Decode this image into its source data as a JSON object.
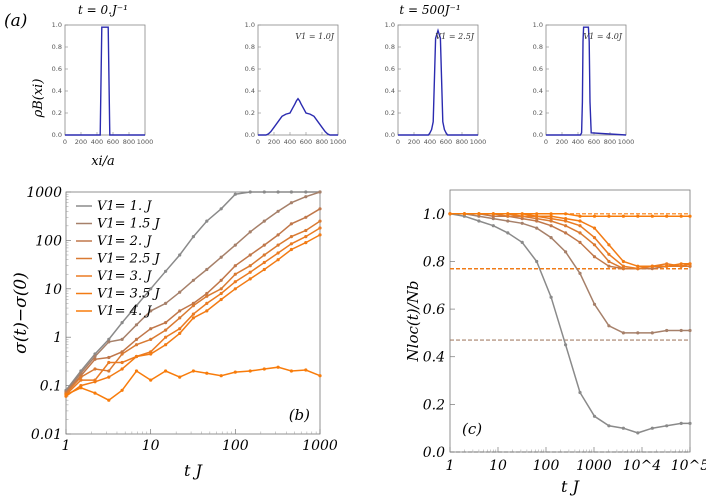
{
  "figure": {
    "label_a": "(a)",
    "time_left": "t = 0.J⁻¹",
    "time_right": "t = 500J⁻¹",
    "ylabel_a": "ρB(xi)",
    "xlabel_a": "xi/a"
  },
  "chart_data": [
    {
      "id": "a1",
      "type": "line",
      "annotation": "",
      "x": [
        0,
        440,
        460,
        540,
        560,
        1000
      ],
      "y": [
        0,
        0,
        0.98,
        0.98,
        0,
        0
      ],
      "xlim": [
        0,
        1000
      ],
      "ylim": [
        0,
        1.0
      ],
      "xticks": [
        "0",
        "200",
        "400",
        "600",
        "800",
        "1000"
      ],
      "yticks": [
        "0.0",
        "0.2",
        "0.4",
        "0.6",
        "0.8",
        "1.0"
      ]
    },
    {
      "id": "a2",
      "type": "line",
      "annotation": "V1 = 1.0J",
      "x": [
        0,
        100,
        130,
        160,
        200,
        250,
        300,
        350,
        400,
        430,
        460,
        480,
        500,
        520,
        540,
        570,
        600,
        650,
        700,
        750,
        800,
        840,
        870,
        900,
        1000
      ],
      "y": [
        0,
        0,
        0.01,
        0.03,
        0.07,
        0.12,
        0.17,
        0.19,
        0.2,
        0.24,
        0.28,
        0.31,
        0.33,
        0.31,
        0.28,
        0.24,
        0.2,
        0.19,
        0.17,
        0.12,
        0.07,
        0.03,
        0.01,
        0,
        0
      ],
      "xlim": [
        0,
        1000
      ],
      "ylim": [
        0,
        1.0
      ],
      "xticks": [
        "0",
        "200",
        "400",
        "600",
        "800",
        "1000"
      ],
      "yticks": [
        "0.0",
        "0.2",
        "0.4",
        "0.6",
        "0.8",
        "1.0"
      ]
    },
    {
      "id": "a3",
      "type": "line",
      "annotation": "V1 = 2.5J",
      "x": [
        0,
        380,
        400,
        420,
        440,
        455,
        470,
        500,
        530,
        545,
        560,
        580,
        600,
        620,
        1000
      ],
      "y": [
        0,
        0,
        0.02,
        0.05,
        0.12,
        0.5,
        0.88,
        0.95,
        0.88,
        0.5,
        0.12,
        0.05,
        0.02,
        0,
        0
      ],
      "xlim": [
        0,
        1000
      ],
      "ylim": [
        0,
        1.0
      ],
      "xticks": [
        "0",
        "200",
        "400",
        "600",
        "800",
        "1000"
      ],
      "yticks": [
        "0.0",
        "0.2",
        "0.4",
        "0.6",
        "0.8",
        "1.0"
      ]
    },
    {
      "id": "a4",
      "type": "line",
      "annotation": "V1 = 4.0J",
      "x": [
        0,
        430,
        445,
        455,
        462,
        470,
        530,
        540,
        550,
        565,
        1000
      ],
      "y": [
        0,
        0,
        0.02,
        0.3,
        0.85,
        0.98,
        0.98,
        0.85,
        0.3,
        0.02,
        0
      ],
      "xlim": [
        0,
        1000
      ],
      "ylim": [
        0,
        1.0
      ],
      "xticks": [
        "0",
        "200",
        "400",
        "600",
        "800",
        "1000"
      ],
      "yticks": [
        "0.0",
        "0.2",
        "0.4",
        "0.6",
        "0.8",
        "1.0"
      ]
    },
    {
      "id": "b",
      "type": "line",
      "label": "(b)",
      "xlabel": "t J",
      "ylabel": "σ(t)−σ(0)",
      "xscale": "log",
      "yscale": "log",
      "xlim": [
        1,
        1000
      ],
      "ylim": [
        0.01,
        1000
      ],
      "xticks": [
        "1",
        "10",
        "100",
        "1000"
      ],
      "yticks": [
        "0.01",
        "0.1",
        "1",
        "10",
        "100",
        "1000"
      ],
      "x": [
        1,
        1.5,
        2.2,
        3.2,
        4.6,
        6.8,
        10,
        15,
        22,
        32,
        46,
        68,
        100,
        150,
        220,
        320,
        460,
        680,
        1000
      ],
      "series": [
        {
          "name": "V1= 1.  J",
          "color": "#8a8a8a",
          "values": [
            0.08,
            0.2,
            0.45,
            0.9,
            2,
            4.5,
            10,
            23,
            50,
            120,
            250,
            450,
            900,
            1000,
            1000,
            1000,
            1000,
            1000,
            1000
          ]
        },
        {
          "name": "V1= 1.5 J",
          "color": "#a6806a",
          "values": [
            0.075,
            0.18,
            0.4,
            0.8,
            0.9,
            1.8,
            3.5,
            5,
            8.5,
            15,
            25,
            45,
            80,
            150,
            250,
            400,
            600,
            800,
            1000
          ]
        },
        {
          "name": "V1= 2.  J",
          "color": "#c0774a",
          "values": [
            0.07,
            0.16,
            0.35,
            0.38,
            0.5,
            0.9,
            1.5,
            2,
            3.5,
            5,
            8,
            15,
            30,
            50,
            80,
            130,
            220,
            300,
            450
          ]
        },
        {
          "name": "V1= 2.5 J",
          "color": "#d97a32",
          "values": [
            0.07,
            0.15,
            0.22,
            0.2,
            0.45,
            0.7,
            0.9,
            1.4,
            2.5,
            4.5,
            7,
            10,
            20,
            30,
            50,
            80,
            120,
            160,
            250
          ]
        },
        {
          "name": "V1= 3.  J",
          "color": "#ea7b22",
          "values": [
            0.065,
            0.13,
            0.13,
            0.3,
            0.3,
            0.4,
            0.5,
            1,
            1.5,
            3,
            5,
            8,
            14,
            22,
            35,
            55,
            85,
            120,
            180
          ]
        },
        {
          "name": "V1= 3.5 J",
          "color": "#f27b14",
          "values": [
            0.06,
            0.1,
            0.12,
            0.15,
            0.22,
            0.4,
            0.45,
            0.7,
            1.2,
            2.5,
            3.5,
            6,
            10,
            16,
            25,
            40,
            65,
            90,
            130
          ]
        },
        {
          "name": "V1= 4.  J",
          "color": "#f87c0b",
          "values": [
            0.065,
            0.09,
            0.07,
            0.05,
            0.08,
            0.2,
            0.13,
            0.2,
            0.15,
            0.2,
            0.18,
            0.16,
            0.19,
            0.2,
            0.22,
            0.24,
            0.2,
            0.21,
            0.16
          ]
        }
      ]
    },
    {
      "id": "c",
      "type": "line",
      "label": "(c)",
      "xlabel": "t J",
      "ylabel": "Nloc(t)/Nb",
      "xscale": "log",
      "xlim": [
        1,
        100000
      ],
      "ylim": [
        0,
        1.1
      ],
      "xticks": [
        "1",
        "10",
        "100",
        "1000",
        "10^4",
        "10^5"
      ],
      "yticks": [
        "0.0",
        "0.2",
        "0.4",
        "0.6",
        "0.8",
        "1.0"
      ],
      "x": [
        1,
        2,
        4,
        8,
        16,
        32,
        64,
        128,
        256,
        512,
        1024,
        2048,
        4096,
        8192,
        16384,
        32768,
        65536,
        100000
      ],
      "series": [
        {
          "name": "V1= 1.  J",
          "color": "#8a8a8a",
          "asymptote": 0.0,
          "values": [
            1.0,
            0.99,
            0.97,
            0.95,
            0.92,
            0.88,
            0.8,
            0.65,
            0.45,
            0.25,
            0.15,
            0.11,
            0.1,
            0.08,
            0.1,
            0.11,
            0.12,
            0.12
          ]
        },
        {
          "name": "V1= 1.5 J",
          "color": "#a6806a",
          "asymptote": 0.47,
          "values": [
            1.0,
            1.0,
            0.99,
            0.98,
            0.97,
            0.96,
            0.94,
            0.9,
            0.84,
            0.75,
            0.62,
            0.53,
            0.5,
            0.5,
            0.5,
            0.51,
            0.51,
            0.51
          ]
        },
        {
          "name": "V1= 2.  J",
          "color": "#c0774a",
          "asymptote": 0.77,
          "values": [
            1.0,
            1.0,
            1.0,
            0.99,
            0.99,
            0.98,
            0.97,
            0.95,
            0.92,
            0.88,
            0.82,
            0.78,
            0.77,
            0.77,
            0.77,
            0.78,
            0.78,
            0.78
          ]
        },
        {
          "name": "V1= 2.5 J",
          "color": "#d97a32",
          "asymptote": 0.77,
          "values": [
            1.0,
            1.0,
            1.0,
            1.0,
            0.99,
            0.99,
            0.98,
            0.97,
            0.95,
            0.92,
            0.87,
            0.8,
            0.77,
            0.77,
            0.78,
            0.78,
            0.78,
            0.78
          ]
        },
        {
          "name": "V1= 3.  J",
          "color": "#ea7b22",
          "asymptote": 0.77,
          "values": [
            1.0,
            1.0,
            1.0,
            1.0,
            1.0,
            0.99,
            0.99,
            0.98,
            0.97,
            0.95,
            0.9,
            0.83,
            0.78,
            0.77,
            0.78,
            0.79,
            0.78,
            0.79
          ]
        },
        {
          "name": "V1= 3.5 J",
          "color": "#f27b14",
          "asymptote": 0.77,
          "values": [
            1.0,
            1.0,
            1.0,
            1.0,
            1.0,
            1.0,
            0.99,
            0.99,
            0.98,
            0.97,
            0.94,
            0.87,
            0.8,
            0.78,
            0.78,
            0.78,
            0.79,
            0.79
          ]
        },
        {
          "name": "V1= 4.  J",
          "color": "#f87c0b",
          "asymptote": 1.0,
          "values": [
            1.0,
            1.0,
            1.0,
            1.0,
            1.0,
            1.0,
            1.0,
            1.0,
            1.0,
            0.99,
            0.99,
            0.99,
            0.99,
            0.99,
            0.99,
            0.99,
            0.99,
            0.99
          ]
        }
      ]
    }
  ]
}
